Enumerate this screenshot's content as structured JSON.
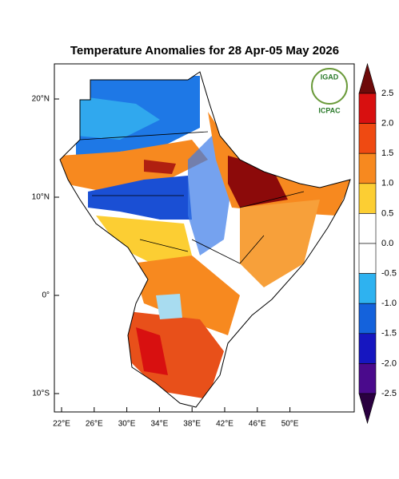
{
  "title": "Temperature Anomalies for 28 Apr-05 May 2026",
  "map": {
    "lat_labels": [
      "20°N",
      "10°N",
      "0°",
      "10°S"
    ],
    "lon_labels": [
      "22°E",
      "26°E",
      "30°E",
      "34°E",
      "38°E",
      "42°E",
      "46°E",
      "50°E"
    ]
  },
  "colorbar": {
    "labels": [
      "2.5",
      "2.0",
      "1.5",
      "1.0",
      "0.5",
      "0.0",
      "-0.5",
      "-1.0",
      "-1.5",
      "-2.0",
      "-2.5"
    ],
    "colors": [
      "#6e0a0a",
      "#d81010",
      "#ef4a12",
      "#f7891f",
      "#fcce33",
      "#ffffff",
      "#ffffff",
      "#2eb2f0",
      "#1462dc",
      "#1616c0",
      "#4a0a8c",
      "#2a0040"
    ]
  },
  "logo": {
    "top": "IGAD",
    "bottom": "ICPAC"
  }
}
